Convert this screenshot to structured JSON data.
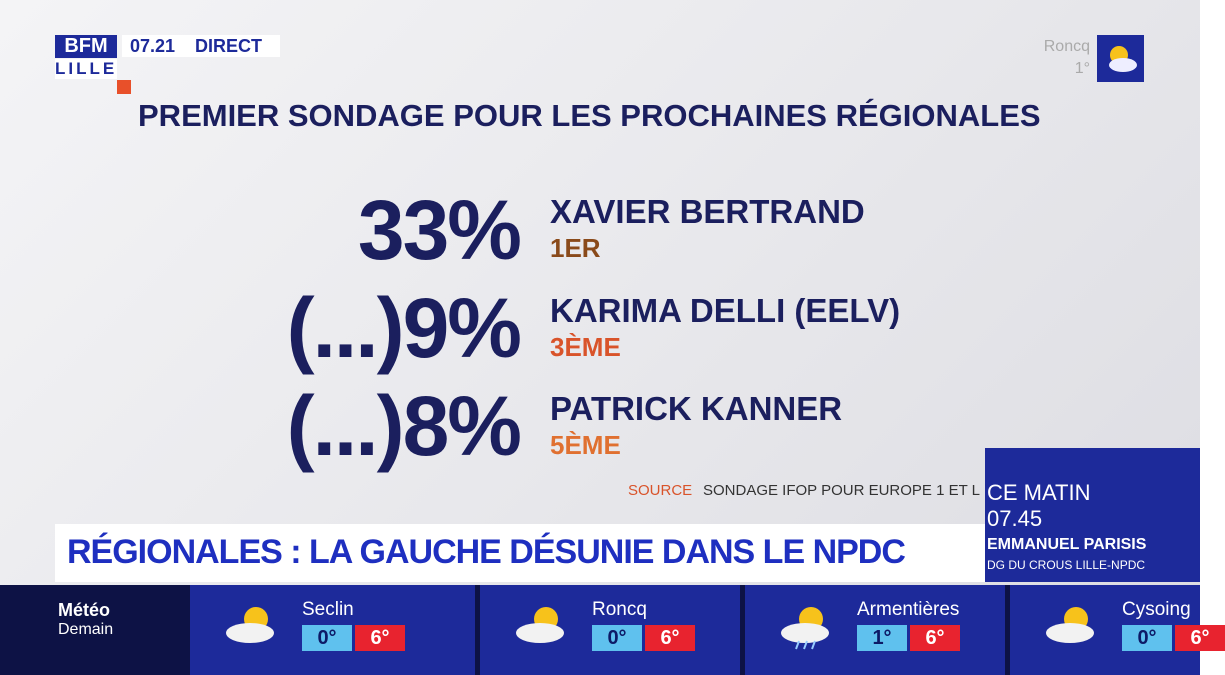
{
  "logo": {
    "brand": "BFM",
    "city": "LILLE"
  },
  "clock": {
    "time": "07.21",
    "status": "DIRECT"
  },
  "top_weather": {
    "city": "Roncq",
    "temp": "1°"
  },
  "title": "PREMIER SONDAGE POUR LES PROCHAINES RÉGIONALES",
  "results": [
    {
      "score": "33%",
      "name": "XAVIER BERTRAND",
      "rank": "1ER"
    },
    {
      "score": "(...)9%",
      "name": "KARIMA DELLI (EELV)",
      "rank": "3ÈME"
    },
    {
      "score": "(...)8%",
      "name": "PATRICK KANNER",
      "rank": "5ÈME"
    }
  ],
  "source": {
    "label": "SOURCE",
    "text": "SONDAGE IFOP POUR EUROPE 1 ET L"
  },
  "headline": "RÉGIONALES : LA GAUCHE DÉSUNIE DANS LE NPDC",
  "side_panel": {
    "slot": "CE MATIN",
    "time": "07.45",
    "guest": "EMMANUEL PARISIS",
    "role": "DG DU CROUS LILLE-NPDC"
  },
  "weather_bar": {
    "label": "Météo",
    "day": "Demain",
    "cities": [
      {
        "name": "Seclin",
        "min": "0°",
        "max": "6°"
      },
      {
        "name": "Roncq",
        "min": "0°",
        "max": "6°"
      },
      {
        "name": "Armentières",
        "min": "1°",
        "max": "6°"
      },
      {
        "name": "Cysoing",
        "min": "0°",
        "max": "6°"
      }
    ]
  }
}
